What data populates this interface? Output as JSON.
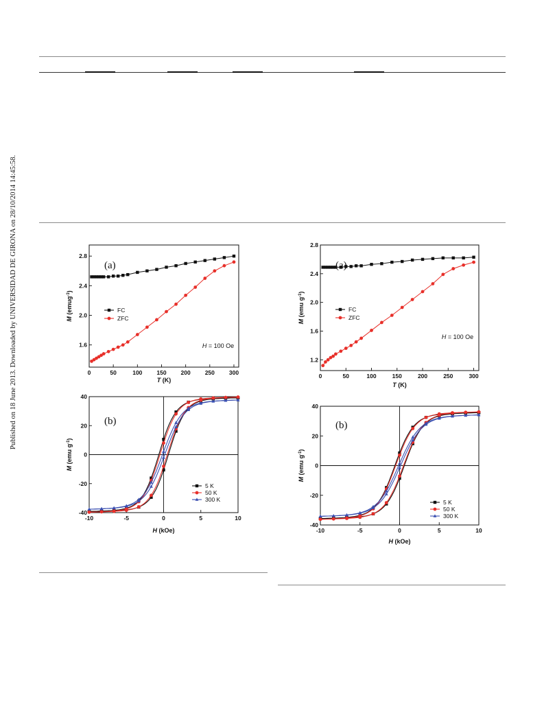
{
  "side_note": "Published on 18 June 2013. Downloaded by UNIVERSIDAD DE GIRONA on 28/10/2014 14:45:58.",
  "chart_data": [
    {
      "id": "left-a",
      "type": "scatter",
      "panel_label": "(a)",
      "xlabel_italic": "T",
      "xlabel_rest": " (K)",
      "ylabel_italic": "M",
      "ylabel_rest": " (emug",
      "ylabel_sup": "-1",
      "ylabel_end": ")",
      "xlim": [
        0,
        310
      ],
      "ylim": [
        1.3,
        2.95
      ],
      "xticks": [
        "0",
        "50",
        "100",
        "150",
        "200",
        "250",
        "300"
      ],
      "yticks": [
        "1.6",
        "2.0",
        "2.4",
        "2.8"
      ],
      "annotation_italic": "H",
      "annotation_rest": " = 100 Oe",
      "legend_position": "left-middle",
      "series": [
        {
          "name": "FC",
          "color": "#111111",
          "marker": "square",
          "x": [
            5,
            10,
            15,
            20,
            25,
            30,
            40,
            50,
            60,
            70,
            80,
            100,
            120,
            140,
            160,
            180,
            200,
            220,
            240,
            260,
            280,
            300
          ],
          "y": [
            2.52,
            2.52,
            2.52,
            2.52,
            2.52,
            2.52,
            2.52,
            2.53,
            2.53,
            2.54,
            2.55,
            2.58,
            2.6,
            2.62,
            2.65,
            2.67,
            2.7,
            2.72,
            2.74,
            2.76,
            2.78,
            2.8
          ]
        },
        {
          "name": "ZFC",
          "color": "#e8302a",
          "marker": "circle",
          "x": [
            5,
            10,
            15,
            20,
            25,
            30,
            40,
            50,
            60,
            70,
            80,
            100,
            120,
            140,
            160,
            180,
            200,
            220,
            240,
            260,
            280,
            300
          ],
          "y": [
            1.38,
            1.4,
            1.42,
            1.44,
            1.46,
            1.48,
            1.51,
            1.54,
            1.57,
            1.6,
            1.64,
            1.74,
            1.84,
            1.94,
            2.05,
            2.15,
            2.27,
            2.38,
            2.5,
            2.6,
            2.67,
            2.72
          ]
        }
      ]
    },
    {
      "id": "left-b",
      "type": "line",
      "panel_label": "(b)",
      "xlabel_italic": "H",
      "xlabel_rest": " (kOe)",
      "ylabel_italic": "M",
      "ylabel_rest": " (emu g",
      "ylabel_sup": "-1",
      "ylabel_end": ")",
      "xlim": [
        -10,
        10
      ],
      "ylim": [
        -40,
        40
      ],
      "xticks": [
        "-10",
        "-5",
        "0",
        "5",
        "10"
      ],
      "yticks": [
        "-40",
        "-20",
        "0",
        "20",
        "40"
      ],
      "legend_position": "lower-right",
      "series": [
        {
          "name": "5 K",
          "color": "#111111",
          "marker": "square",
          "ms": 38,
          "hc": 0.65,
          "w": 1.25
        },
        {
          "name": "50 K",
          "color": "#e8302a",
          "marker": "circle",
          "ms": 38.5,
          "hc": 0.5,
          "w": 1.3
        },
        {
          "name": "300 K",
          "color": "#3a4fb0",
          "marker": "triangle",
          "ms": 36.5,
          "hc": 0.15,
          "w": 1.45
        }
      ]
    },
    {
      "id": "right-a",
      "type": "scatter",
      "panel_label": "(a)",
      "xlabel_italic": "T",
      "xlabel_rest": " (K)",
      "ylabel_italic": "M",
      "ylabel_rest": " (emu g",
      "ylabel_sup": "-1",
      "ylabel_end": ")",
      "xlim": [
        0,
        310
      ],
      "ylim": [
        1.05,
        2.8
      ],
      "xticks": [
        "0",
        "50",
        "100",
        "150",
        "200",
        "250",
        "300"
      ],
      "yticks": [
        "1.2",
        "1.6",
        "2.0",
        "2.4",
        "2.8"
      ],
      "annotation_italic": "H",
      "annotation_rest": " = 100 Oe",
      "legend_position": "left-upper",
      "series": [
        {
          "name": "FC",
          "color": "#111111",
          "marker": "square",
          "x": [
            5,
            10,
            15,
            20,
            25,
            30,
            40,
            50,
            60,
            70,
            80,
            100,
            120,
            140,
            160,
            180,
            200,
            220,
            240,
            260,
            280,
            300
          ],
          "y": [
            2.49,
            2.49,
            2.49,
            2.49,
            2.49,
            2.49,
            2.49,
            2.5,
            2.5,
            2.51,
            2.51,
            2.53,
            2.54,
            2.56,
            2.57,
            2.59,
            2.6,
            2.61,
            2.62,
            2.62,
            2.62,
            2.63
          ]
        },
        {
          "name": "ZFC",
          "color": "#e8302a",
          "marker": "circle",
          "x": [
            5,
            10,
            15,
            20,
            25,
            30,
            40,
            50,
            60,
            70,
            80,
            100,
            120,
            140,
            160,
            180,
            200,
            220,
            240,
            260,
            280,
            300
          ],
          "y": [
            1.12,
            1.17,
            1.2,
            1.23,
            1.25,
            1.28,
            1.32,
            1.36,
            1.4,
            1.45,
            1.5,
            1.61,
            1.72,
            1.82,
            1.93,
            2.04,
            2.15,
            2.26,
            2.39,
            2.47,
            2.52,
            2.56
          ]
        }
      ]
    },
    {
      "id": "right-b",
      "type": "line",
      "panel_label": "(b)",
      "xlabel_italic": "H",
      "xlabel_rest": " (kOe)",
      "ylabel_italic": "M",
      "ylabel_rest": " (emu g",
      "ylabel_sup": "-1",
      "ylabel_end": ")",
      "xlim": [
        -10,
        10
      ],
      "ylim": [
        -40,
        40
      ],
      "xticks": [
        "-10",
        "-5",
        "0",
        "5",
        "10"
      ],
      "yticks": [
        "-40",
        "-20",
        "0",
        "20",
        "40"
      ],
      "legend_position": "lower-right",
      "series": [
        {
          "name": "5 K",
          "color": "#111111",
          "marker": "square",
          "ms": 34.5,
          "hc": 0.6,
          "w": 1.3
        },
        {
          "name": "50 K",
          "color": "#e8302a",
          "marker": "circle",
          "ms": 35,
          "hc": 0.5,
          "w": 1.35
        },
        {
          "name": "300 K",
          "color": "#3a4fb0",
          "marker": "triangle",
          "ms": 33,
          "hc": 0.12,
          "w": 1.5
        }
      ]
    }
  ]
}
